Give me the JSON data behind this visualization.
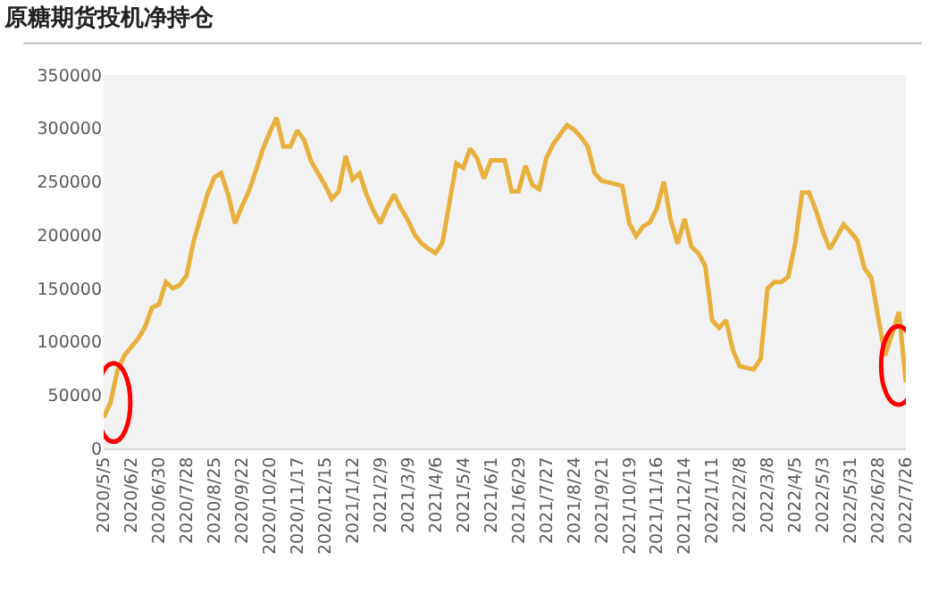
{
  "chart_data": {
    "type": "line",
    "title": "原糖期货投机净持仓",
    "x": [
      "2020-05-05",
      "2020-05-12",
      "2020-05-19",
      "2020-05-26",
      "2020-06-02",
      "2020-06-09",
      "2020-06-16",
      "2020-06-23",
      "2020-06-30",
      "2020-07-07",
      "2020-07-14",
      "2020-07-21",
      "2020-07-28",
      "2020-08-04",
      "2020-08-11",
      "2020-08-18",
      "2020-08-25",
      "2020-09-01",
      "2020-09-08",
      "2020-09-15",
      "2020-09-22",
      "2020-09-29",
      "2020-10-06",
      "2020-10-13",
      "2020-10-20",
      "2020-10-27",
      "2020-11-03",
      "2020-11-10",
      "2020-11-17",
      "2020-11-24",
      "2020-12-01",
      "2020-12-08",
      "2020-12-15",
      "2020-12-22",
      "2020-12-29",
      "2021-01-05",
      "2021-01-12",
      "2021-01-19",
      "2021-01-26",
      "2021-02-02",
      "2021-02-09",
      "2021-02-16",
      "2021-02-23",
      "2021-03-02",
      "2021-03-09",
      "2021-03-16",
      "2021-03-23",
      "2021-03-30",
      "2021-04-06",
      "2021-04-13",
      "2021-04-27",
      "2021-05-04",
      "2021-05-11",
      "2021-05-18",
      "2021-05-25",
      "2021-06-01",
      "2021-06-08",
      "2021-06-15",
      "2021-06-22",
      "2021-06-29",
      "2021-07-06",
      "2021-07-13",
      "2021-07-20",
      "2021-07-27",
      "2021-08-03",
      "2021-08-17",
      "2021-08-24",
      "2021-08-31",
      "2021-09-07",
      "2021-09-14",
      "2021-09-21",
      "2021-10-12",
      "2021-10-19",
      "2021-10-26",
      "2021-11-02",
      "2021-11-09",
      "2021-11-16",
      "2021-11-23",
      "2021-11-30",
      "2021-12-07",
      "2021-12-14",
      "2021-12-21",
      "2021-12-28",
      "2022-01-04",
      "2022-01-11",
      "2022-01-18",
      "2022-01-25",
      "2022-02-01",
      "2022-02-08",
      "2022-02-22",
      "2022-03-01",
      "2022-03-08",
      "2022-03-15",
      "2022-03-22",
      "2022-03-29",
      "2022-04-05",
      "2022-04-12",
      "2022-04-19",
      "2022-04-26",
      "2022-05-03",
      "2022-05-10",
      "2022-05-17",
      "2022-05-24",
      "2022-05-31",
      "2022-06-07",
      "2022-06-14",
      "2022-06-21",
      "2022-06-28",
      "2022-07-05",
      "2022-07-12",
      "2022-07-19",
      "2022-07-26"
    ],
    "series": [
      {
        "color": "#e8b03c",
        "values": [
          29000,
          43000,
          73000,
          87000,
          95000,
          103000,
          114000,
          132000,
          135000,
          156000,
          150000,
          153000,
          162000,
          194000,
          216000,
          238000,
          254000,
          258000,
          238000,
          211000,
          227000,
          241000,
          260000,
          280000,
          296000,
          310000,
          283000,
          283000,
          298000,
          289000,
          269000,
          258000,
          247000,
          234000,
          241000,
          274000,
          252000,
          258000,
          238000,
          223000,
          211000,
          226000,
          238000,
          225000,
          214000,
          200000,
          192000,
          187000,
          183000,
          193000,
          267000,
          263000,
          281000,
          272000,
          253000,
          270000,
          270000,
          270000,
          241000,
          241000,
          265000,
          247000,
          243000,
          272000,
          285000,
          303000,
          299000,
          292000,
          283000,
          258000,
          251000,
          246000,
          211000,
          199000,
          208000,
          212000,
          225000,
          250000,
          214000,
          192000,
          215000,
          189000,
          183000,
          171000,
          120000,
          113000,
          120000,
          92000,
          77000,
          74000,
          84000,
          150000,
          156000,
          156000,
          161000,
          192000,
          240000,
          240000,
          223000,
          203000,
          187000,
          198000,
          210000,
          203000,
          195000,
          169000,
          160000,
          123000,
          87000,
          107000,
          128000,
          62000
        ]
      }
    ],
    "xlim": [
      "2020-05-05",
      "2022-07-26"
    ],
    "xticks": [
      {
        "value": "2020-05-05",
        "label": "2020/5/5"
      },
      {
        "value": "2020-06-02",
        "label": "2020/6/2"
      },
      {
        "value": "2020-06-30",
        "label": "2020/6/30"
      },
      {
        "value": "2020-07-28",
        "label": "2020/7/28"
      },
      {
        "value": "2020-08-25",
        "label": "2020/8/25"
      },
      {
        "value": "2020-09-22",
        "label": "2020/9/22"
      },
      {
        "value": "2020-10-20",
        "label": "2020/10/20"
      },
      {
        "value": "2020-11-17",
        "label": "2020/11/17"
      },
      {
        "value": "2020-12-15",
        "label": "2020/12/15"
      },
      {
        "value": "2021-01-12",
        "label": "2021/1/12"
      },
      {
        "value": "2021-02-09",
        "label": "2021/2/9"
      },
      {
        "value": "2021-03-09",
        "label": "2021/3/9"
      },
      {
        "value": "2021-04-06",
        "label": "2021/4/6"
      },
      {
        "value": "2021-05-04",
        "label": "2021/5/4"
      },
      {
        "value": "2021-06-01",
        "label": "2021/6/1"
      },
      {
        "value": "2021-06-29",
        "label": "2021/6/29"
      },
      {
        "value": "2021-07-27",
        "label": "2021/7/27"
      },
      {
        "value": "2021-08-24",
        "label": "2021/8/24"
      },
      {
        "value": "2021-09-21",
        "label": "2021/9/21"
      },
      {
        "value": "2021-10-19",
        "label": "2021/10/19"
      },
      {
        "value": "2021-11-16",
        "label": "2021/11/16"
      },
      {
        "value": "2021-12-14",
        "label": "2021/12/14"
      },
      {
        "value": "2022-01-11",
        "label": "2022/1/11"
      },
      {
        "value": "2022-02-08",
        "label": "2022/2/8"
      },
      {
        "value": "2022-03-08",
        "label": "2022/3/8"
      },
      {
        "value": "2022-04-05",
        "label": "2022/4/5"
      },
      {
        "value": "2022-05-03",
        "label": "2022/5/3"
      },
      {
        "value": "2022-05-31",
        "label": "2022/5/31"
      },
      {
        "value": "2022-06-28",
        "label": "2022/6/28"
      },
      {
        "value": "2022-07-26",
        "label": "2022/7/26"
      }
    ],
    "ylim": [
      0,
      350000
    ],
    "yticks": [
      0,
      50000,
      100000,
      150000,
      200000,
      250000,
      300000,
      350000
    ],
    "grid": false,
    "marker": "none",
    "line_style": "solid"
  }
}
